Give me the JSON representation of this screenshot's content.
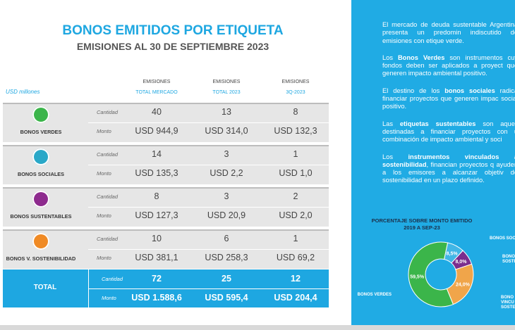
{
  "header": {
    "title": "BONOS EMITIDOS POR ETIQUETA",
    "subtitle": "EMISIONES AL 30 DE SEPTIEMBRE 2023"
  },
  "table": {
    "unit": "USD millones",
    "columns": [
      [
        "EMISIONES",
        "TOTAL MERCADO"
      ],
      [
        "EMISIONES",
        "TOTAL 2023"
      ],
      [
        "EMISIONES",
        "3Q-2023"
      ]
    ],
    "measures": [
      "Cantidad",
      "Monto"
    ],
    "rows": [
      {
        "label": "BONOS VERDES",
        "color": "#3bb54a",
        "cantidad": [
          40,
          13,
          8
        ],
        "monto": [
          "USD 944,9",
          "USD 314,0",
          "USD 132,3"
        ]
      },
      {
        "label": "BONOS SOCIALES",
        "color": "#29a8c8",
        "cantidad": [
          14,
          3,
          1
        ],
        "monto": [
          "USD 135,3",
          "USD 2,2",
          "USD 1,0"
        ]
      },
      {
        "label": "BONOS SUSTENTABLES",
        "color": "#8e2a8e",
        "cantidad": [
          8,
          3,
          2
        ],
        "monto": [
          "USD 127,3",
          "USD 20,9",
          "USD 2,0"
        ]
      },
      {
        "label": "BONOS V. SOSTENIBILIDAD",
        "color": "#f08a24",
        "cantidad": [
          10,
          6,
          1
        ],
        "monto": [
          "USD 381,1",
          "USD 258,3",
          "USD 69,2"
        ]
      }
    ],
    "total": {
      "label": "TOTAL",
      "cantidad": [
        72,
        25,
        12
      ],
      "monto": [
        "USD 1.588,6",
        "USD 595,4",
        "USD 204,4"
      ]
    }
  },
  "sidebar": {
    "paragraphs": [
      [
        "El mercado de deuda sustentable Argentina presenta un predomin indiscutido de emisiones con etique verde."
      ],
      [
        "Los ",
        "Bonos Verdes",
        " son instrumentos cuy fondos deben ser aplicados a proyect que generen impacto ambiental positivo."
      ],
      [
        "El destino de los ",
        "bonos sociales",
        " radica financiar proyectos que generen impac social positivo."
      ],
      [
        "Las ",
        "etiquetas sustentables",
        " son aquell destinadas a financiar proyectos con u combinación de impacto ambiental y soci"
      ],
      [
        "Los ",
        "instrumentos vinculados a sostenibilidad",
        ", financian proyectos q ayuden a los emisores a alcanzar objetiv de sostenibilidad en un plazo definido."
      ]
    ]
  },
  "chart_data": {
    "type": "pie",
    "title": "PORCENTAJE SOBRE MONTO EMITIDO 2019 A SEP-23",
    "categories": [
      "BONOS SOC",
      "BONO SOSTE",
      "BONO VINCU SOSTE",
      "BONOS VERDES"
    ],
    "values": [
      8.5,
      8.0,
      24.0,
      59.5
    ],
    "value_labels": [
      "8,5%",
      "8,0%",
      "24,0%",
      "59,5%"
    ],
    "colors": [
      "#41b6e6",
      "#7b2d8e",
      "#f0a54a",
      "#3bb54a"
    ]
  }
}
